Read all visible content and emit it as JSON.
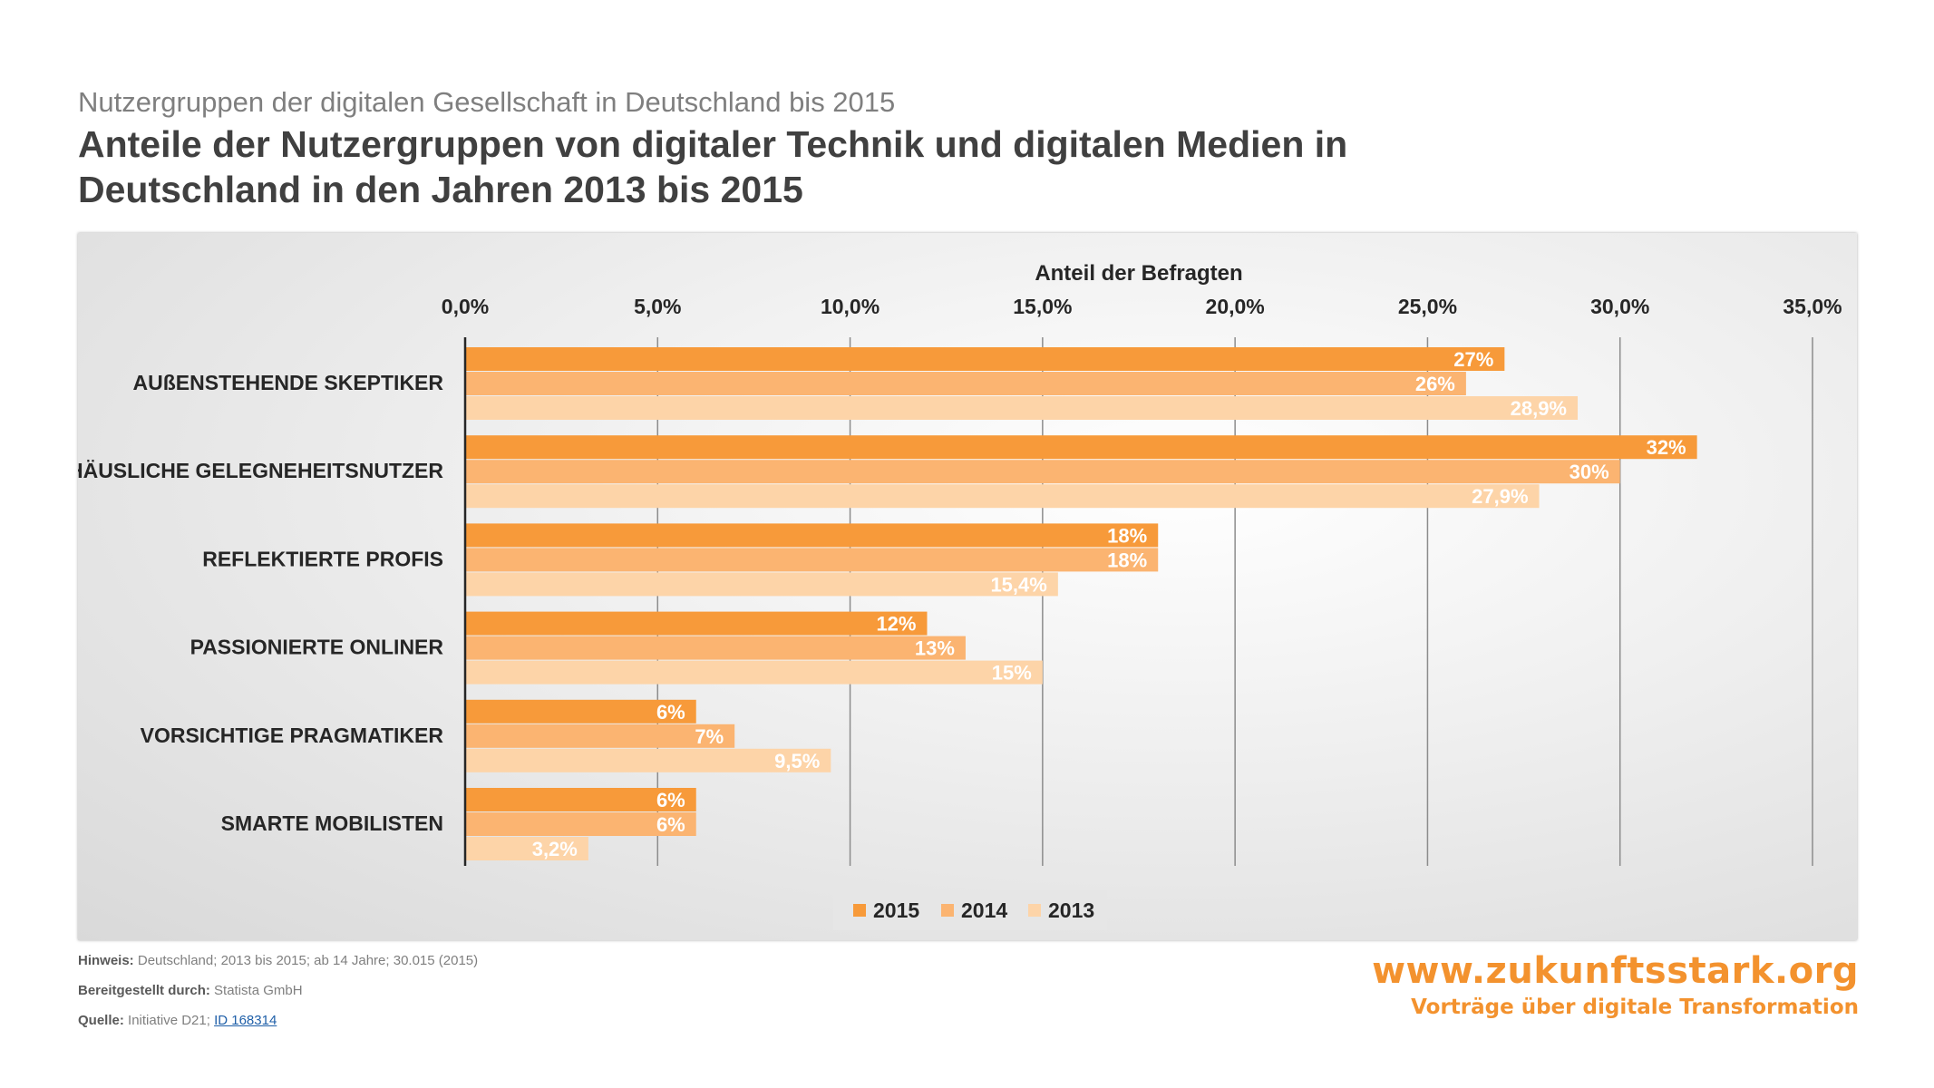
{
  "header": {
    "subtitle": "Nutzergruppen der digitalen Gesellschaft in Deutschland bis 2015",
    "title": "Anteile der Nutzergruppen von digitaler Technik und digitalen Medien in Deutschland in den Jahren 2013 bis 2015"
  },
  "chart_data": {
    "type": "bar",
    "orientation": "horizontal",
    "xlabel": "Anteil der Befragten",
    "xlim": [
      0,
      35
    ],
    "x_ticks": [
      "0,0%",
      "5,0%",
      "10,0%",
      "15,0%",
      "20,0%",
      "25,0%",
      "30,0%",
      "35,0%"
    ],
    "categories": [
      "AUßENSTEHENDE SKEPTIKER",
      "HÄUSLICHE GELEGNEHEITSNUTZER",
      "REFLEKTIERTE PROFIS",
      "PASSIONIERTE ONLINER",
      "VORSICHTIGE PRAGMATIKER",
      "SMARTE MOBILISTEN"
    ],
    "series": [
      {
        "name": "2015",
        "color": "#f79a3a",
        "values": [
          27,
          32,
          18,
          12,
          6,
          6
        ],
        "labels": [
          "27%",
          "32%",
          "18%",
          "12%",
          "6%",
          "6%"
        ]
      },
      {
        "name": "2014",
        "color": "#fbb471",
        "values": [
          26,
          30,
          18,
          13,
          7,
          6
        ],
        "labels": [
          "26%",
          "30%",
          "18%",
          "13%",
          "7%",
          "6%"
        ]
      },
      {
        "name": "2013",
        "color": "#fdd4a8",
        "values": [
          28.9,
          27.9,
          15.4,
          15,
          9.5,
          3.2
        ],
        "labels": [
          "28,9%",
          "27,9%",
          "15,4%",
          "15%",
          "9,5%",
          "3,2%"
        ]
      }
    ],
    "legend": "bottom",
    "grid": true
  },
  "notes": {
    "hinweis_key": "Hinweis:",
    "hinweis_val": " Deutschland; 2013 bis 2015; ab 14 Jahre; 30.015 (2015)",
    "bereit_key": "Bereitgestellt durch:",
    "bereit_val": " Statista GmbH",
    "quelle_key": "Quelle:",
    "quelle_val": " Initiative D21; ",
    "quelle_link": "ID 168314"
  },
  "brand": {
    "url": "www.zukunftsstark.org",
    "tagline": "Vorträge über digitale Transformation"
  }
}
